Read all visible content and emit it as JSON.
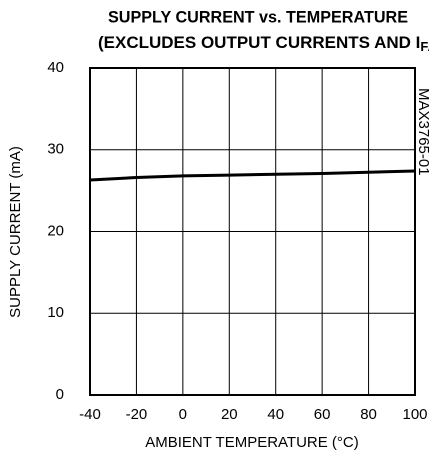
{
  "chart_data": {
    "type": "line",
    "title": "SUPPLY CURRENT vs. TEMPERATURE",
    "subtitle": {
      "text": "(EXCLUDES OUTPUT CURRENTS AND I",
      "subscript": "FAIL",
      "end": ")"
    },
    "annotation": "MAX3765-01",
    "xlabel": "AMBIENT TEMPERATURE (°C)",
    "ylabel": "SUPPLY CURRENT (mA)",
    "x": [
      -40,
      -20,
      0,
      20,
      40,
      60,
      80,
      100
    ],
    "series": [
      {
        "name": "Supply current",
        "color": "#000000",
        "values": [
          26.3,
          26.6,
          26.8,
          26.9,
          27.0,
          27.1,
          27.25,
          27.4
        ]
      }
    ],
    "xlim": [
      -40,
      100
    ],
    "xticks": [
      -40,
      -20,
      0,
      20,
      40,
      60,
      80,
      100
    ],
    "ylim": [
      0,
      40
    ],
    "yticks": [
      0,
      10,
      20,
      30,
      40
    ],
    "grid": true
  }
}
